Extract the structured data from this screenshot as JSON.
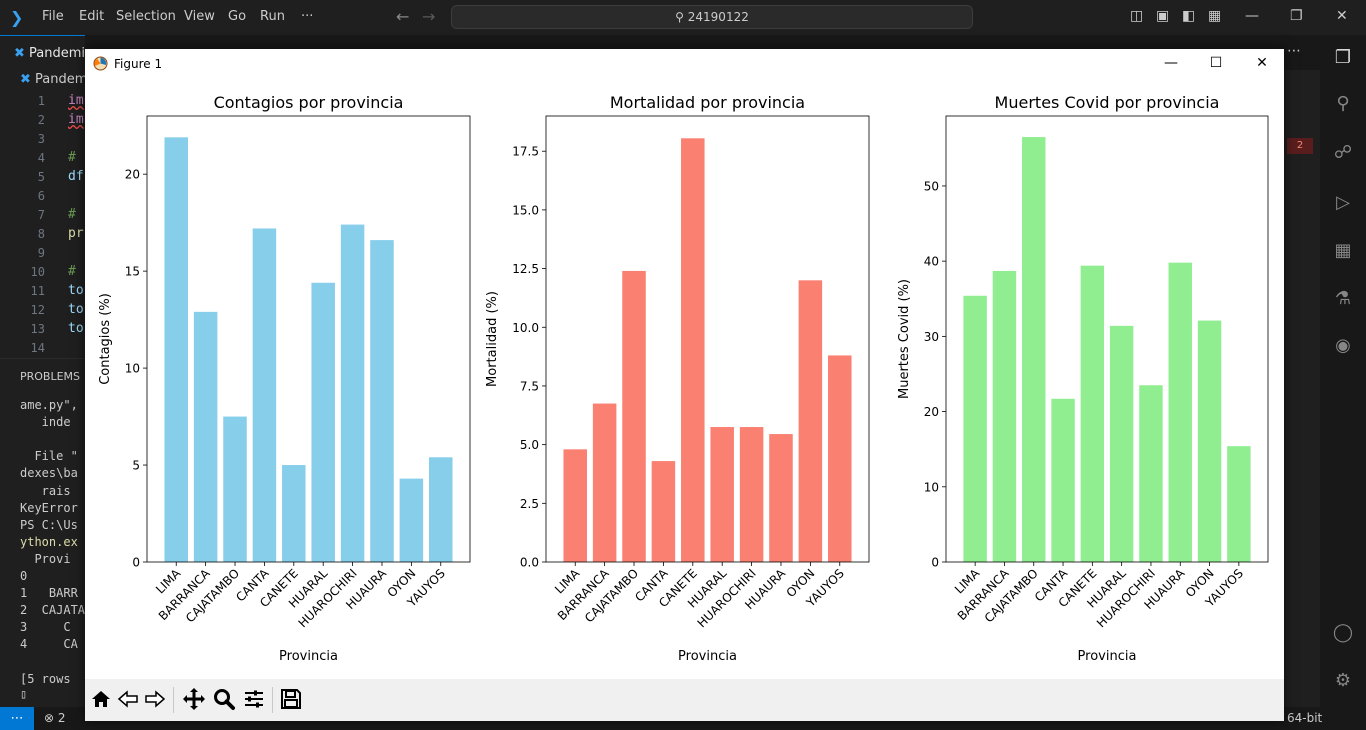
{
  "vscode": {
    "menu": [
      "File",
      "Edit",
      "Selection",
      "View",
      "Go",
      "Run",
      "···"
    ],
    "search_text": "24190122",
    "tab_label": "Pandemia",
    "breadcrumb": "Pandem",
    "line_numbers": [
      "1",
      "2",
      "3",
      "4",
      "5",
      "6",
      "7",
      "8",
      "9",
      "10",
      "11",
      "12",
      "13",
      "14"
    ],
    "code_lines": [
      {
        "text": "im",
        "color": "#c586c0"
      },
      {
        "text": "im",
        "color": "#c586c0"
      },
      {
        "text": "",
        "color": "#cccccc"
      },
      {
        "text": "#",
        "color": "#6a9955"
      },
      {
        "text": "df",
        "color": "#9cdcfe"
      },
      {
        "text": "",
        "color": "#cccccc"
      },
      {
        "text": "#",
        "color": "#6a9955"
      },
      {
        "text": "pr",
        "color": "#dcdcaa"
      },
      {
        "text": "",
        "color": "#cccccc"
      },
      {
        "text": "#",
        "color": "#6a9955"
      },
      {
        "text": "to",
        "color": "#9cdcfe"
      },
      {
        "text": "to",
        "color": "#9cdcfe"
      },
      {
        "text": "to",
        "color": "#9cdcfe"
      },
      {
        "text": "",
        "color": "#cccccc"
      }
    ],
    "panel_title": "PROBLEMS",
    "terminal_lines": [
      {
        "text": "ame.py\",",
        "color": "#cccccc"
      },
      {
        "text": "   inde",
        "color": "#cccccc"
      },
      {
        "text": "",
        "color": "#cccccc"
      },
      {
        "text": "  File \"",
        "color": "#cccccc"
      },
      {
        "text": "dexes\\ba",
        "color": "#cccccc"
      },
      {
        "text": "   rais",
        "color": "#cccccc"
      },
      {
        "text": "KeyError",
        "color": "#cccccc"
      },
      {
        "text": "PS C:\\Us",
        "color": "#cccccc"
      },
      {
        "text": "ython.ex",
        "color": "#dcdcaa"
      },
      {
        "text": "  Provi",
        "color": "#cccccc"
      },
      {
        "text": "0",
        "color": "#cccccc"
      },
      {
        "text": "1   BARR",
        "color": "#cccccc"
      },
      {
        "text": "2  CAJATA",
        "color": "#cccccc"
      },
      {
        "text": "3     C",
        "color": "#cccccc"
      },
      {
        "text": "4     CA",
        "color": "#cccccc"
      },
      {
        "text": "",
        "color": "#cccccc"
      },
      {
        "text": "[5 rows",
        "color": "#cccccc"
      }
    ],
    "minimap_badge": "2",
    "status_errors": "⊗ 2",
    "status_arch": "64-bit",
    "colors": {
      "accent": "#0078d4"
    }
  },
  "figure": {
    "window_title": "Figure 1",
    "toolbar_icons": [
      "home-icon",
      "back-icon",
      "forward-icon",
      "pan-icon",
      "zoom-icon",
      "configure-subplots-icon",
      "save-icon"
    ]
  },
  "chart_data": [
    {
      "type": "bar",
      "title": "Contagios por provincia",
      "xlabel": "Provincia",
      "ylabel": "Contagios (%)",
      "categories": [
        "LIMA",
        "BARRANCA",
        "CAJATAMBO",
        "CANTA",
        "CANETE",
        "HUARAL",
        "HUAROCHIRI",
        "HUAURA",
        "OYON",
        "YAUYOS"
      ],
      "values": [
        21.9,
        12.9,
        7.5,
        17.2,
        5.0,
        14.4,
        17.4,
        16.6,
        4.3,
        5.4
      ],
      "ylim": [
        0,
        23
      ],
      "yticks": [
        0,
        5,
        10,
        15,
        20
      ],
      "ytick_labels": [
        "0",
        "5",
        "10",
        "15",
        "20"
      ],
      "color": "#87ceeb",
      "grid": false
    },
    {
      "type": "bar",
      "title": "Mortalidad por provincia",
      "xlabel": "Provincia",
      "ylabel": "Mortalidad (%)",
      "categories": [
        "LIMA",
        "BARRANCA",
        "CAJATAMBO",
        "CANTA",
        "CANETE",
        "HUARAL",
        "HUAROCHIRI",
        "HUAURA",
        "OYON",
        "YAUYOS"
      ],
      "values": [
        4.8,
        6.75,
        12.4,
        4.3,
        18.05,
        5.75,
        5.75,
        5.45,
        12.0,
        8.8
      ],
      "ylim": [
        0,
        19
      ],
      "yticks": [
        0,
        2.5,
        5,
        7.5,
        10,
        12.5,
        15,
        17.5
      ],
      "ytick_labels": [
        "0.0",
        "2.5",
        "5.0",
        "7.5",
        "10.0",
        "12.5",
        "15.0",
        "17.5"
      ],
      "color": "#fa8072",
      "grid": false
    },
    {
      "type": "bar",
      "title": "Muertes Covid por provincia",
      "xlabel": "Provincia",
      "ylabel": "Muertes Covid (%)",
      "categories": [
        "LIMA",
        "BARRANCA",
        "CAJATAMBO",
        "CANTA",
        "CANETE",
        "HUARAL",
        "HUAROCHIRI",
        "HUAURA",
        "OYON",
        "YAUYOS"
      ],
      "values": [
        35.4,
        38.7,
        56.5,
        21.7,
        39.4,
        31.4,
        23.5,
        39.8,
        32.1,
        15.4
      ],
      "ylim": [
        0,
        59.3
      ],
      "yticks": [
        0,
        10,
        20,
        30,
        40,
        50
      ],
      "ytick_labels": [
        "0",
        "10",
        "20",
        "30",
        "40",
        "50"
      ],
      "color": "#90ee90",
      "grid": false
    }
  ]
}
